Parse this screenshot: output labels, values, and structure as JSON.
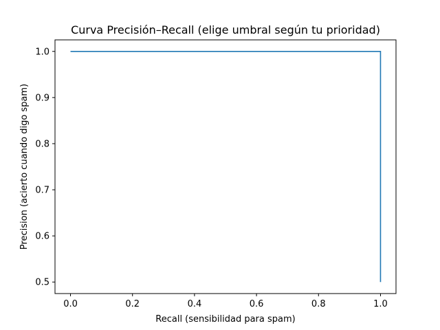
{
  "chart_data": {
    "type": "line",
    "title": "Curva Precisión–Recall (elige umbral según tu prioridad)",
    "xlabel": "Recall (sensibilidad para spam)",
    "ylabel": "Precision (acierto cuando digo spam)",
    "xlim": [
      -0.05,
      1.05
    ],
    "ylim": [
      0.475,
      1.025
    ],
    "xticks": [
      0.0,
      0.2,
      0.4,
      0.6,
      0.8,
      1.0
    ],
    "xtick_labels": [
      "0.0",
      "0.2",
      "0.4",
      "0.6",
      "0.8",
      "1.0"
    ],
    "yticks": [
      0.5,
      0.6,
      0.7,
      0.8,
      0.9,
      1.0
    ],
    "ytick_labels": [
      "0.5",
      "0.6",
      "0.7",
      "0.8",
      "0.9",
      "1.0"
    ],
    "grid": false,
    "legend": "none",
    "series": [
      {
        "color": "#1f77b4",
        "x": [
          0.0,
          1.0,
          1.0
        ],
        "y": [
          1.0,
          1.0,
          0.5
        ]
      }
    ]
  }
}
